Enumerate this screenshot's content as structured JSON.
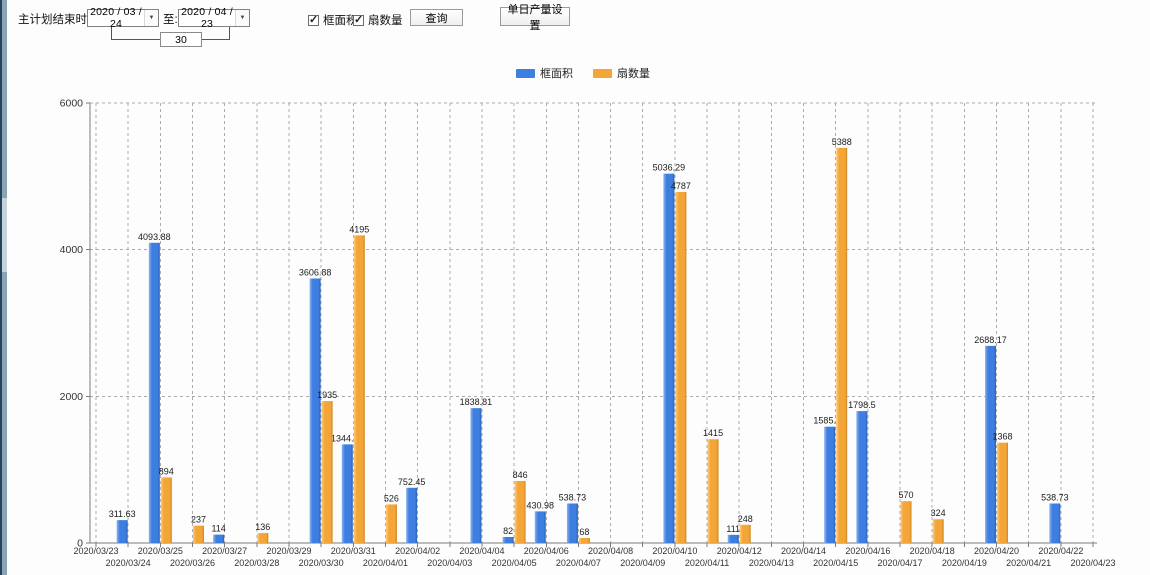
{
  "toolbar": {
    "label_end_time": "主计划结束时间:",
    "date_from": "2020 / 03 / 24",
    "to_label": "至:",
    "date_to": "2020 / 04 / 23",
    "days_between": "30",
    "checkbox_frame_area": {
      "label": "框面积",
      "checked": true
    },
    "checkbox_sash_count": {
      "label": "扇数量",
      "checked": true
    },
    "query_button": "查询",
    "daily_output_button": "单日产量设置"
  },
  "legend": [
    {
      "label": "框面积",
      "color": "#3d7ee0"
    },
    {
      "label": "扇数量",
      "color": "#f3a537"
    }
  ],
  "chart_data": {
    "type": "bar",
    "title": "",
    "xlabel": "",
    "ylabel": "",
    "ylim": [
      0,
      6000
    ],
    "yticks": [
      0,
      2000,
      4000,
      6000
    ],
    "grid": true,
    "legend_position": "top",
    "categories": [
      "2020/03/23",
      "2020/03/24",
      "2020/03/25",
      "2020/03/26",
      "2020/03/27",
      "2020/03/28",
      "2020/03/29",
      "2020/03/30",
      "2020/03/31",
      "2020/04/01",
      "2020/04/02",
      "2020/04/03",
      "2020/04/04",
      "2020/04/05",
      "2020/04/06",
      "2020/04/07",
      "2020/04/08",
      "2020/04/09",
      "2020/04/10",
      "2020/04/11",
      "2020/04/12",
      "2020/04/13",
      "2020/04/14",
      "2020/04/15",
      "2020/04/16",
      "2020/04/17",
      "2020/04/18",
      "2020/04/19",
      "2020/04/20",
      "2020/04/21",
      "2020/04/22",
      "2020/04/23"
    ],
    "series": [
      {
        "name": "框面积",
        "color": "#3d7ee0",
        "color_light": "#8db4ef",
        "color_dark": "#2b63b8",
        "values": [
          null,
          311.63,
          4093.88,
          null,
          114,
          null,
          null,
          3606.88,
          1344.95,
          null,
          752.45,
          null,
          1838.81,
          82,
          430.98,
          538.73,
          null,
          null,
          5036.29,
          null,
          111,
          null,
          null,
          1585.96,
          1798.5,
          null,
          null,
          null,
          2688.17,
          null,
          538.73,
          null
        ]
      },
      {
        "name": "扇数量",
        "color": "#f3a537",
        "color_light": "#ffcb7d",
        "color_dark": "#cf8724",
        "values": [
          null,
          null,
          894,
          237,
          null,
          136,
          null,
          1935,
          4195,
          526,
          null,
          null,
          null,
          846,
          null,
          68,
          null,
          null,
          4787,
          1415,
          248,
          null,
          null,
          5388,
          null,
          570,
          324,
          null,
          1368,
          null,
          null,
          null
        ]
      }
    ]
  }
}
